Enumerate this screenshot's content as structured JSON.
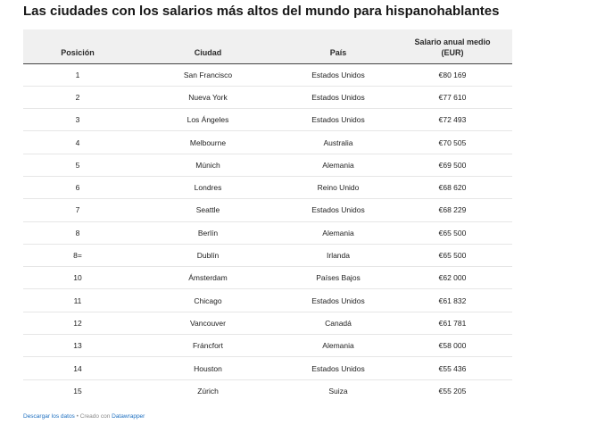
{
  "title": "Las ciudades con los salarios más altos del mundo para hispanohablantes",
  "table": {
    "headers": [
      "Posición",
      "Ciudad",
      "País",
      "Salario anual medio (EUR)"
    ],
    "rows": [
      [
        "1",
        "San Francisco",
        "Estados Unidos",
        "€80 169"
      ],
      [
        "2",
        "Nueva York",
        "Estados Unidos",
        "€77 610"
      ],
      [
        "3",
        "Los Ángeles",
        "Estados Unidos",
        "€72 493"
      ],
      [
        "4",
        "Melbourne",
        "Australia",
        "€70 505"
      ],
      [
        "5",
        "Múnich",
        "Alemania",
        "€69 500"
      ],
      [
        "6",
        "Londres",
        "Reino Unido",
        "€68 620"
      ],
      [
        "7",
        "Seattle",
        "Estados Unidos",
        "€68 229"
      ],
      [
        "8",
        "Berlín",
        "Alemania",
        "€65 500"
      ],
      [
        "8=",
        "Dublín",
        "Irlanda",
        "€65 500"
      ],
      [
        "10",
        "Ámsterdam",
        "Países Bajos",
        "€62 000"
      ],
      [
        "11",
        "Chicago",
        "Estados Unidos",
        "€61 832"
      ],
      [
        "12",
        "Vancouver",
        "Canadá",
        "€61 781"
      ],
      [
        "13",
        "Fráncfort",
        "Alemania",
        "€58 000"
      ],
      [
        "14",
        "Houston",
        "Estados Unidos",
        "€55 436"
      ],
      [
        "15",
        "Zúrich",
        "Suiza",
        "€55 205"
      ]
    ]
  },
  "footer": {
    "download_link": "Descargar los datos",
    "separator": " • Creado con ",
    "credit_link": "Datawrapper"
  }
}
